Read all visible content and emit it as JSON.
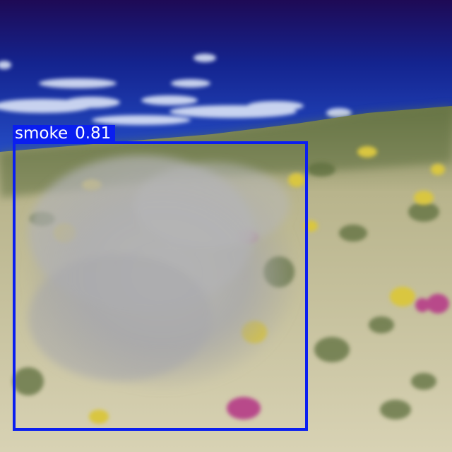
{
  "detection": {
    "label": "smoke",
    "score": "0.81",
    "color": "#0a1ef0"
  },
  "scene": {
    "sky_top": "#1e0a55",
    "sky_mid": "#1f3cc8",
    "ground_color": "#cfc9a8"
  }
}
